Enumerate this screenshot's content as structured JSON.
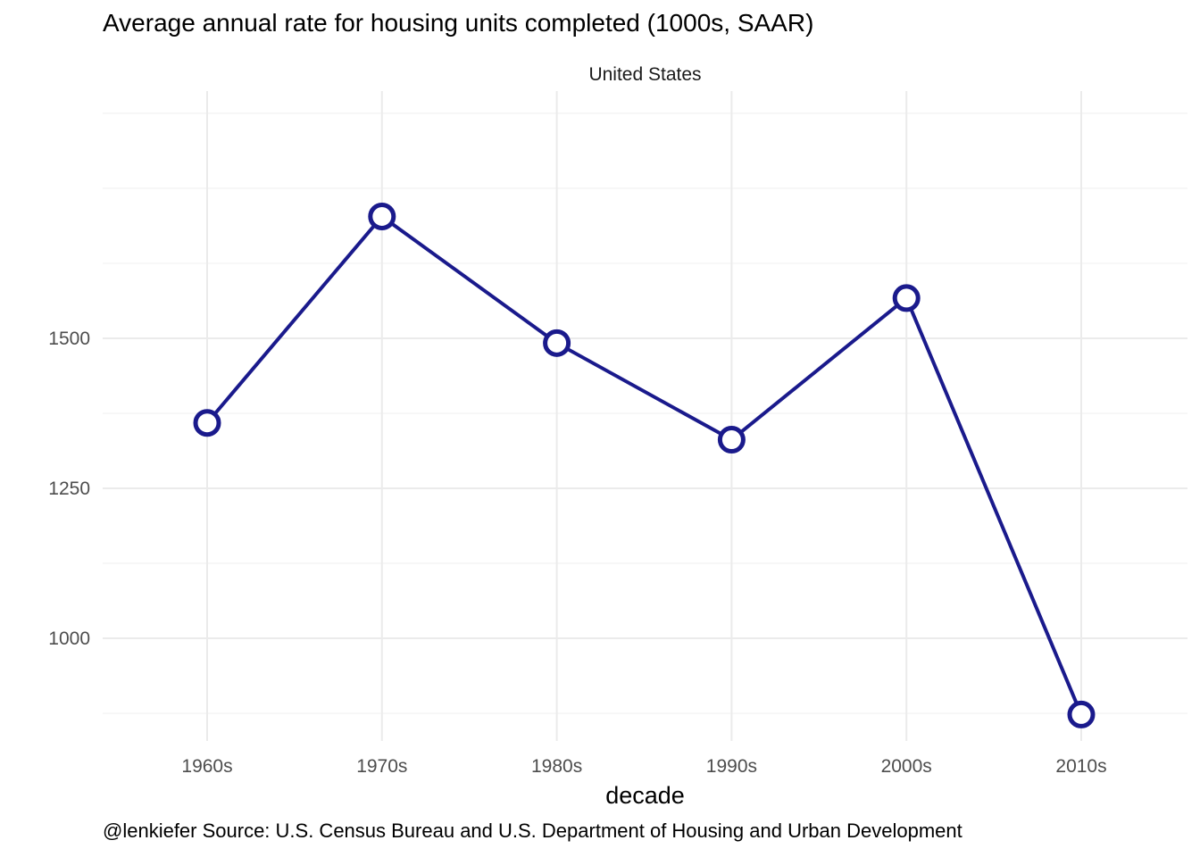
{
  "chart_data": {
    "type": "line",
    "title": "Average annual rate for housing units completed (1000s, SAAR)",
    "facet_label": "United States",
    "xlabel": "decade",
    "ylabel": "",
    "caption": "@lenkiefer Source: U.S. Census Bureau and U.S. Department of Housing and Urban Development",
    "categories": [
      "1960s",
      "1970s",
      "1980s",
      "1990s",
      "2000s",
      "2010s"
    ],
    "values": [
      1359,
      1703,
      1492,
      1331,
      1567,
      873
    ],
    "y_ticks": [
      1000,
      1250,
      1500
    ],
    "ylim": [
      829,
      1912
    ],
    "grid": true,
    "legend": "none",
    "line_color": "#1a1a8c",
    "point_fill": "#ffffff"
  }
}
